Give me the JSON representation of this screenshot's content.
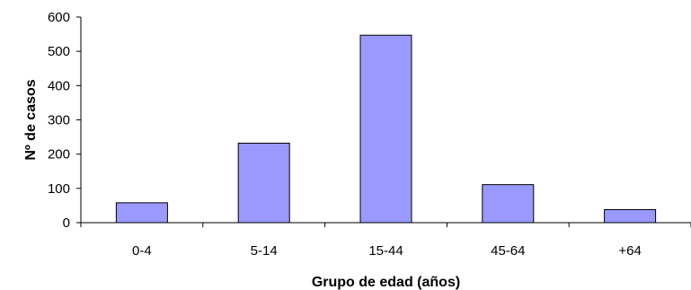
{
  "chart_data": {
    "type": "bar",
    "title": "",
    "xlabel": "Grupo de edad (años)",
    "ylabel": "Nº de casos",
    "categories": [
      "0-4",
      "5-14",
      "15-44",
      "45-64",
      "+64"
    ],
    "values": [
      58,
      232,
      547,
      111,
      38
    ],
    "ylim": [
      0,
      600
    ],
    "yticks": [
      0,
      100,
      200,
      300,
      400,
      500,
      600
    ],
    "bar_color": "#9999ff",
    "bar_edge_color": "#000000",
    "grid": false,
    "legend": "none"
  }
}
